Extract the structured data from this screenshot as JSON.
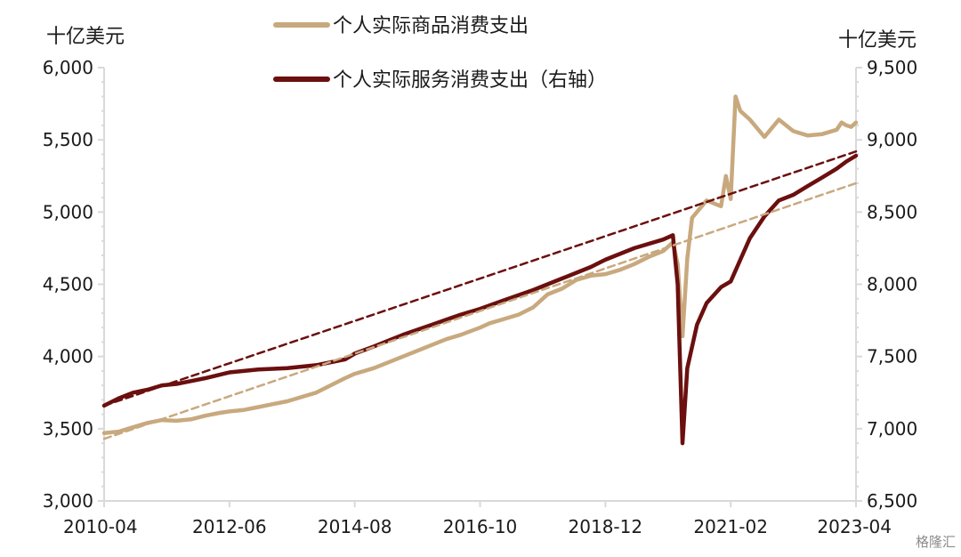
{
  "chart_data": {
    "type": "line",
    "left_unit": "十亿美元",
    "right_unit": "十亿美元",
    "x_tick_labels": [
      "2010-04",
      "2012-06",
      "2014-08",
      "2016-10",
      "2018-12",
      "2021-02",
      "2023-04"
    ],
    "x_range": [
      "2010-04",
      "2023-04"
    ],
    "y_left": {
      "range": [
        3000,
        6000
      ],
      "ticks": [
        3000,
        3500,
        4000,
        4500,
        5000,
        5500,
        6000
      ]
    },
    "y_right": {
      "range": [
        6500,
        9500
      ],
      "ticks": [
        6500,
        7000,
        7500,
        8000,
        8500,
        9000,
        9500
      ]
    },
    "legend_position": "top-center",
    "colors": {
      "goods": "#c8a97e",
      "services": "#6b0f0f",
      "axis": "#d9d9d9"
    },
    "series": [
      {
        "name": "个人实际商品消费支出",
        "axis": "left",
        "style": "solid",
        "points": [
          [
            "2010-04",
            3470
          ],
          [
            "2010-07",
            3480
          ],
          [
            "2010-10",
            3510
          ],
          [
            "2011-01",
            3540
          ],
          [
            "2011-04",
            3560
          ],
          [
            "2011-07",
            3555
          ],
          [
            "2011-10",
            3565
          ],
          [
            "2012-01",
            3590
          ],
          [
            "2012-04",
            3610
          ],
          [
            "2012-06",
            3620
          ],
          [
            "2012-09",
            3630
          ],
          [
            "2012-12",
            3650
          ],
          [
            "2013-03",
            3670
          ],
          [
            "2013-06",
            3690
          ],
          [
            "2013-09",
            3720
          ],
          [
            "2013-12",
            3750
          ],
          [
            "2014-03",
            3800
          ],
          [
            "2014-06",
            3850
          ],
          [
            "2014-08",
            3880
          ],
          [
            "2014-12",
            3920
          ],
          [
            "2015-03",
            3960
          ],
          [
            "2015-06",
            4000
          ],
          [
            "2015-09",
            4040
          ],
          [
            "2015-12",
            4080
          ],
          [
            "2016-03",
            4120
          ],
          [
            "2016-06",
            4150
          ],
          [
            "2016-10",
            4200
          ],
          [
            "2016-12",
            4230
          ],
          [
            "2017-03",
            4260
          ],
          [
            "2017-06",
            4290
          ],
          [
            "2017-09",
            4340
          ],
          [
            "2017-12",
            4430
          ],
          [
            "2018-03",
            4470
          ],
          [
            "2018-06",
            4530
          ],
          [
            "2018-09",
            4560
          ],
          [
            "2018-12",
            4570
          ],
          [
            "2019-03",
            4600
          ],
          [
            "2019-06",
            4640
          ],
          [
            "2019-09",
            4690
          ],
          [
            "2019-12",
            4730
          ],
          [
            "2020-02",
            4790
          ],
          [
            "2020-03",
            4640
          ],
          [
            "2020-04",
            4140
          ],
          [
            "2020-05",
            4680
          ],
          [
            "2020-06",
            4960
          ],
          [
            "2020-09",
            5080
          ],
          [
            "2020-12",
            5040
          ],
          [
            "2021-01",
            5250
          ],
          [
            "2021-02",
            5090
          ],
          [
            "2021-03",
            5800
          ],
          [
            "2021-04",
            5700
          ],
          [
            "2021-06",
            5640
          ],
          [
            "2021-09",
            5520
          ],
          [
            "2021-12",
            5640
          ],
          [
            "2022-03",
            5560
          ],
          [
            "2022-06",
            5530
          ],
          [
            "2022-09",
            5540
          ],
          [
            "2022-12",
            5570
          ],
          [
            "2023-01",
            5620
          ],
          [
            "2023-02",
            5600
          ],
          [
            "2023-03",
            5590
          ],
          [
            "2023-04",
            5620
          ]
        ]
      },
      {
        "name": "个人实际服务消费支出（右轴）",
        "axis": "right",
        "style": "solid",
        "points": [
          [
            "2010-04",
            7160
          ],
          [
            "2010-07",
            7210
          ],
          [
            "2010-10",
            7250
          ],
          [
            "2011-01",
            7270
          ],
          [
            "2011-04",
            7300
          ],
          [
            "2011-07",
            7310
          ],
          [
            "2011-10",
            7330
          ],
          [
            "2012-01",
            7350
          ],
          [
            "2012-06",
            7390
          ],
          [
            "2012-12",
            7410
          ],
          [
            "2013-06",
            7420
          ],
          [
            "2013-12",
            7440
          ],
          [
            "2014-06",
            7480
          ],
          [
            "2014-08",
            7520
          ],
          [
            "2014-12",
            7570
          ],
          [
            "2015-06",
            7650
          ],
          [
            "2015-12",
            7720
          ],
          [
            "2016-06",
            7790
          ],
          [
            "2016-10",
            7830
          ],
          [
            "2017-03",
            7890
          ],
          [
            "2017-09",
            7960
          ],
          [
            "2018-03",
            8040
          ],
          [
            "2018-09",
            8120
          ],
          [
            "2018-12",
            8170
          ],
          [
            "2019-06",
            8250
          ],
          [
            "2019-12",
            8310
          ],
          [
            "2020-02",
            8340
          ],
          [
            "2020-03",
            8000
          ],
          [
            "2020-04",
            6900
          ],
          [
            "2020-05",
            7420
          ],
          [
            "2020-07",
            7720
          ],
          [
            "2020-09",
            7870
          ],
          [
            "2020-12",
            7980
          ],
          [
            "2021-02",
            8020
          ],
          [
            "2021-04",
            8170
          ],
          [
            "2021-06",
            8320
          ],
          [
            "2021-09",
            8470
          ],
          [
            "2021-12",
            8580
          ],
          [
            "2022-03",
            8620
          ],
          [
            "2022-06",
            8680
          ],
          [
            "2022-09",
            8740
          ],
          [
            "2022-12",
            8800
          ],
          [
            "2023-02",
            8850
          ],
          [
            "2023-04",
            8890
          ]
        ]
      },
      {
        "axis": "left",
        "style": "dashed",
        "trend_of": "个人实际商品消费支出",
        "points": [
          [
            "2010-04",
            3430
          ],
          [
            "2023-04",
            5200
          ]
        ]
      },
      {
        "axis": "right",
        "style": "dashed",
        "trend_of": "个人实际服务消费支出（右轴）",
        "points": [
          [
            "2010-04",
            7160
          ],
          [
            "2023-04",
            8920
          ]
        ]
      }
    ]
  },
  "watermark": "格隆汇"
}
